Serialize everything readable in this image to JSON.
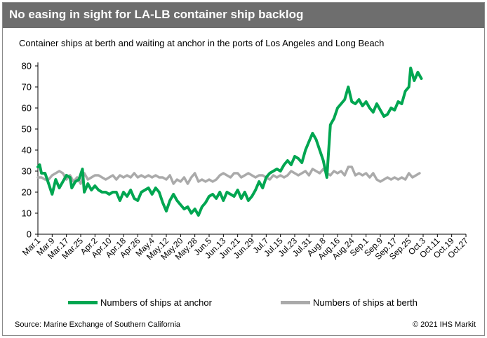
{
  "header": {
    "title": "No easing in sight for LA-LB container ship backlog"
  },
  "colors": {
    "header_bg": "#6e6e6e",
    "anchor_series": "#00a651",
    "berth_series": "#aaaaaa"
  },
  "chart_data": {
    "type": "line",
    "title": "No easing in sight for LA-LB container ship backlog",
    "subtitle": "Container ships at berth and waiting at anchor in the ports of Los Angeles and Long Beach",
    "xlabel": "",
    "ylabel": "",
    "ylim": [
      0,
      80
    ],
    "yticks": [
      "0",
      "10",
      "20",
      "30",
      "40",
      "50",
      "60",
      "70",
      "80"
    ],
    "gridlines": false,
    "categories": [
      "Mar.1",
      "Mar.9",
      "Mar.17",
      "Mar.25",
      "Apr.2",
      "Apr.10",
      "Apr.18",
      "Apr.26",
      "May.4",
      "May.12",
      "May.20",
      "May.28",
      "Jun.5",
      "Jun.13",
      "Jun.21",
      "Jun.29",
      "Jul.7",
      "Jul.15",
      "Jul.23",
      "Jul.31",
      "Aug.8",
      "Aug.16",
      "Aug.24",
      "Sep.1",
      "Sep.9",
      "Sep.17",
      "Sep.25",
      "Oct.3",
      "Oct.11",
      "Oct.19",
      "Oct.27"
    ],
    "series": [
      {
        "name": "Numbers of ships at anchor",
        "points": [
          [
            0,
            32
          ],
          [
            1,
            33
          ],
          [
            2,
            29
          ],
          [
            4,
            29
          ],
          [
            6,
            24
          ],
          [
            8,
            19
          ],
          [
            10,
            26
          ],
          [
            12,
            22
          ],
          [
            14,
            25
          ],
          [
            16,
            28
          ],
          [
            18,
            27
          ],
          [
            19,
            22
          ],
          [
            21,
            25
          ],
          [
            23,
            26
          ],
          [
            25,
            31
          ],
          [
            26,
            20
          ],
          [
            28,
            24
          ],
          [
            30,
            21
          ],
          [
            32,
            23
          ],
          [
            34,
            21
          ],
          [
            36,
            20
          ],
          [
            38,
            20
          ],
          [
            40,
            19
          ],
          [
            42,
            20
          ],
          [
            44,
            20
          ],
          [
            46,
            16
          ],
          [
            48,
            20
          ],
          [
            50,
            18
          ],
          [
            52,
            21
          ],
          [
            54,
            17
          ],
          [
            56,
            16
          ],
          [
            58,
            20
          ],
          [
            60,
            21
          ],
          [
            62,
            22
          ],
          [
            64,
            19
          ],
          [
            66,
            22
          ],
          [
            68,
            20
          ],
          [
            70,
            15
          ],
          [
            72,
            11
          ],
          [
            74,
            16
          ],
          [
            76,
            19
          ],
          [
            78,
            16
          ],
          [
            80,
            14
          ],
          [
            82,
            12
          ],
          [
            84,
            13
          ],
          [
            86,
            10
          ],
          [
            88,
            12
          ],
          [
            90,
            9
          ],
          [
            92,
            13
          ],
          [
            94,
            15
          ],
          [
            96,
            18
          ],
          [
            98,
            19
          ],
          [
            100,
            17
          ],
          [
            102,
            20
          ],
          [
            104,
            16
          ],
          [
            106,
            20
          ],
          [
            108,
            19
          ],
          [
            110,
            18
          ],
          [
            112,
            21
          ],
          [
            114,
            17
          ],
          [
            116,
            20
          ],
          [
            118,
            16
          ],
          [
            120,
            18
          ],
          [
            122,
            21
          ],
          [
            124,
            25
          ],
          [
            126,
            22
          ],
          [
            128,
            27
          ],
          [
            130,
            29
          ],
          [
            132,
            30
          ],
          [
            134,
            31
          ],
          [
            136,
            30
          ],
          [
            138,
            33
          ],
          [
            140,
            35
          ],
          [
            142,
            33
          ],
          [
            144,
            37
          ],
          [
            146,
            36
          ],
          [
            148,
            34
          ],
          [
            150,
            40
          ],
          [
            152,
            44
          ],
          [
            154,
            48
          ],
          [
            156,
            45
          ],
          [
            158,
            40
          ],
          [
            160,
            35
          ],
          [
            162,
            27
          ],
          [
            164,
            52
          ],
          [
            166,
            55
          ],
          [
            168,
            60
          ],
          [
            170,
            62
          ],
          [
            172,
            64
          ],
          [
            174,
            70
          ],
          [
            176,
            63
          ],
          [
            178,
            62
          ],
          [
            180,
            64
          ],
          [
            182,
            61
          ],
          [
            184,
            63
          ],
          [
            186,
            60
          ],
          [
            188,
            58
          ],
          [
            190,
            62
          ],
          [
            192,
            59
          ],
          [
            194,
            56
          ],
          [
            196,
            57
          ],
          [
            198,
            60
          ],
          [
            200,
            59
          ],
          [
            202,
            63
          ],
          [
            204,
            62
          ],
          [
            206,
            68
          ],
          [
            208,
            70
          ],
          [
            209,
            79
          ],
          [
            211,
            73
          ],
          [
            213,
            77
          ],
          [
            215,
            74
          ]
        ]
      },
      {
        "name": "Numbers of ships at berth",
        "points": [
          [
            0,
            27
          ],
          [
            2,
            27
          ],
          [
            4,
            26
          ],
          [
            6,
            26
          ],
          [
            8,
            28
          ],
          [
            10,
            29
          ],
          [
            12,
            30
          ],
          [
            14,
            29
          ],
          [
            16,
            26
          ],
          [
            18,
            28
          ],
          [
            20,
            25
          ],
          [
            22,
            27
          ],
          [
            24,
            24
          ],
          [
            26,
            29
          ],
          [
            28,
            26
          ],
          [
            30,
            27
          ],
          [
            32,
            28
          ],
          [
            34,
            28
          ],
          [
            36,
            27
          ],
          [
            38,
            26
          ],
          [
            40,
            27
          ],
          [
            42,
            28
          ],
          [
            44,
            26
          ],
          [
            46,
            28
          ],
          [
            48,
            27
          ],
          [
            50,
            28
          ],
          [
            52,
            27
          ],
          [
            54,
            29
          ],
          [
            56,
            27
          ],
          [
            58,
            28
          ],
          [
            60,
            27
          ],
          [
            62,
            28
          ],
          [
            64,
            27
          ],
          [
            66,
            28
          ],
          [
            68,
            27
          ],
          [
            70,
            27
          ],
          [
            72,
            26
          ],
          [
            74,
            28
          ],
          [
            76,
            24
          ],
          [
            78,
            26
          ],
          [
            80,
            25
          ],
          [
            82,
            27
          ],
          [
            84,
            24
          ],
          [
            86,
            27
          ],
          [
            88,
            29
          ],
          [
            90,
            25
          ],
          [
            92,
            26
          ],
          [
            94,
            25
          ],
          [
            96,
            26
          ],
          [
            98,
            25
          ],
          [
            100,
            26
          ],
          [
            102,
            28
          ],
          [
            104,
            29
          ],
          [
            106,
            28
          ],
          [
            108,
            27
          ],
          [
            110,
            29
          ],
          [
            112,
            29
          ],
          [
            114,
            27
          ],
          [
            116,
            28
          ],
          [
            118,
            29
          ],
          [
            120,
            28
          ],
          [
            122,
            27
          ],
          [
            124,
            28
          ],
          [
            126,
            28
          ],
          [
            128,
            27
          ],
          [
            130,
            26
          ],
          [
            132,
            28
          ],
          [
            134,
            27
          ],
          [
            136,
            28
          ],
          [
            138,
            27
          ],
          [
            140,
            28
          ],
          [
            142,
            30
          ],
          [
            144,
            29
          ],
          [
            146,
            28
          ],
          [
            148,
            29
          ],
          [
            150,
            30
          ],
          [
            152,
            28
          ],
          [
            154,
            31
          ],
          [
            156,
            30
          ],
          [
            158,
            29
          ],
          [
            160,
            31
          ],
          [
            162,
            29
          ],
          [
            164,
            28
          ],
          [
            166,
            30
          ],
          [
            168,
            29
          ],
          [
            170,
            30
          ],
          [
            172,
            28
          ],
          [
            174,
            32
          ],
          [
            176,
            32
          ],
          [
            178,
            28
          ],
          [
            180,
            29
          ],
          [
            182,
            28
          ],
          [
            184,
            29
          ],
          [
            186,
            27
          ],
          [
            188,
            29
          ],
          [
            190,
            26
          ],
          [
            192,
            25
          ],
          [
            194,
            26
          ],
          [
            196,
            27
          ],
          [
            198,
            26
          ],
          [
            200,
            27
          ],
          [
            202,
            26
          ],
          [
            204,
            27
          ],
          [
            206,
            26
          ],
          [
            208,
            29
          ],
          [
            210,
            27
          ],
          [
            212,
            28
          ],
          [
            214,
            29
          ]
        ]
      }
    ]
  },
  "legend": {
    "anchor_label": "Numbers of ships at anchor",
    "berth_label": "Numbers of ships at berth"
  },
  "footer": {
    "source": "Source: Marine Exchange of Southern California",
    "copyright": "© 2021 IHS Markit"
  }
}
